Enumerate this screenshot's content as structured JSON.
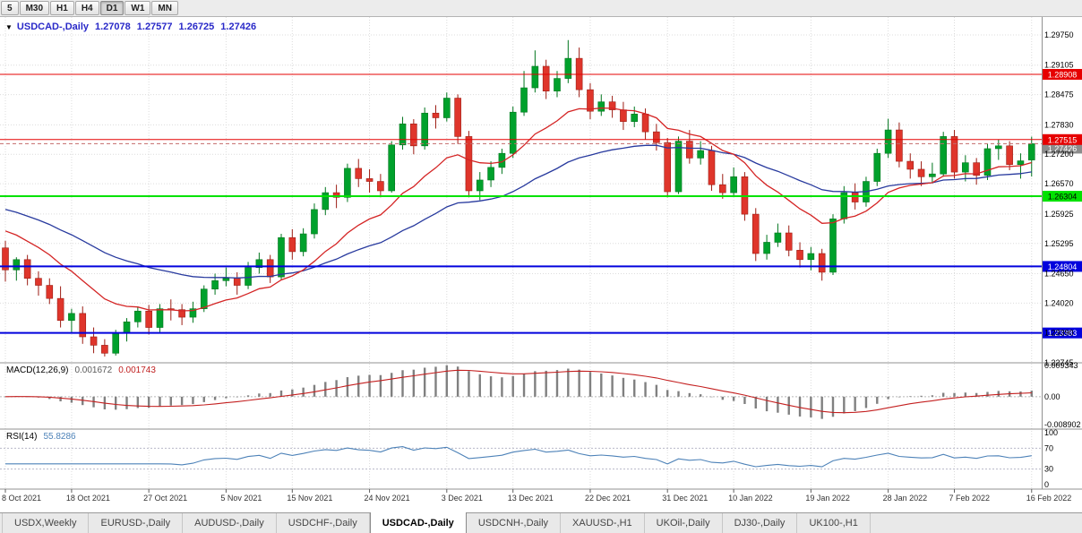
{
  "toolbar": {
    "timeframes": [
      {
        "label": "5",
        "active": false
      },
      {
        "label": "M30",
        "active": false
      },
      {
        "label": "H1",
        "active": false
      },
      {
        "label": "H4",
        "active": false
      },
      {
        "label": "D1",
        "active": true
      },
      {
        "label": "W1",
        "active": false
      },
      {
        "label": "MN",
        "active": false
      }
    ]
  },
  "chart": {
    "collapse_icon": "▼",
    "title": {
      "symbol": "USDCAD-,Daily",
      "open": "1.27078",
      "high": "1.27577",
      "low": "1.26725",
      "close": "1.27426"
    },
    "price_axis": {
      "ticks": [
        "1.29750",
        "1.29105",
        "1.28475",
        "1.27830",
        "1.27200",
        "1.26570",
        "1.25925",
        "1.25295",
        "1.24650",
        "1.24020",
        "1.23390",
        "1.22745"
      ]
    },
    "levels": [
      {
        "price": 1.28908,
        "label": "1.28908",
        "color": "#e60000",
        "text": "#ffffff",
        "width": 1
      },
      {
        "price": 1.27515,
        "label": "1.27515",
        "color": "#e60000",
        "text": "#ffffff",
        "width": 1
      },
      {
        "price": 1.26304,
        "label": "1.26304",
        "color": "#00e200",
        "text": "#000000",
        "width": 2
      },
      {
        "price": 1.24804,
        "label": "1.24804",
        "color": "#0202dd",
        "text": "#ffffff",
        "width": 2
      },
      {
        "price": 1.23383,
        "label": "1.23383",
        "color": "#0202dd",
        "text": "#ffffff",
        "width": 2
      }
    ],
    "current_price": {
      "value": 1.27426,
      "label": "1.27426",
      "badge_color": "#8c8c8c"
    }
  },
  "macd": {
    "label": "MACD(12,26,9)",
    "value_main": "0.001672",
    "value_signal": "0.001743",
    "axis_max": "0.009343",
    "axis_zero": "0.00",
    "axis_min": "-0.008902",
    "hist_color": "#808080",
    "signal_color": "#c42020"
  },
  "rsi": {
    "label": "RSI(14)",
    "value": "55.8286",
    "axis": [
      "100",
      "70",
      "30",
      "0"
    ],
    "levels": [
      70,
      30
    ],
    "line_color": "#4d82b8"
  },
  "tabs": [
    {
      "label": "USDX,Weekly",
      "active": false
    },
    {
      "label": "EURUSD-,Daily",
      "active": false
    },
    {
      "label": "AUDUSD-,Daily",
      "active": false
    },
    {
      "label": "USDCHF-,Daily",
      "active": false
    },
    {
      "label": "USDCAD-,Daily",
      "active": true
    },
    {
      "label": "USDCNH-,Daily",
      "active": false
    },
    {
      "label": "XAUUSD-,H1",
      "active": false
    },
    {
      "label": "UKOil-,Daily",
      "active": false
    },
    {
      "label": "DJ30-,Daily",
      "active": false
    },
    {
      "label": "UK100-,H1",
      "active": false
    }
  ],
  "colors": {
    "up": "#00a12c",
    "up_dark": "#00751d",
    "down": "#df352b",
    "down_dark": "#9c1d14",
    "grid": "#dcdcdc",
    "separator": "#909090",
    "title": "#2929c8"
  },
  "chart_data": {
    "type": "candlestick",
    "symbol": "USDCAD-",
    "timeframe": "Daily",
    "price_range": {
      "top": 1.2975,
      "bottom": 1.22745
    },
    "x_labels": [
      {
        "index": 0,
        "label": "8 Oct 2021"
      },
      {
        "index": 6,
        "label": "18 Oct 2021"
      },
      {
        "index": 13,
        "label": "27 Oct 2021"
      },
      {
        "index": 20,
        "label": "5 Nov 2021"
      },
      {
        "index": 26,
        "label": "15 Nov 2021"
      },
      {
        "index": 33,
        "label": "24 Nov 2021"
      },
      {
        "index": 40,
        "label": "3 Dec 2021"
      },
      {
        "index": 46,
        "label": "13 Dec 2021"
      },
      {
        "index": 53,
        "label": "22 Dec 2021"
      },
      {
        "index": 60,
        "label": "31 Dec 2021"
      },
      {
        "index": 66,
        "label": "10 Jan 2022"
      },
      {
        "index": 73,
        "label": "19 Jan 2022"
      },
      {
        "index": 80,
        "label": "28 Jan 2022"
      },
      {
        "index": 86,
        "label": "7 Feb 2022"
      },
      {
        "index": 93,
        "label": "16 Feb 2022"
      }
    ],
    "ohlc": [
      [
        1.252,
        1.2535,
        1.2448,
        1.2473
      ],
      [
        1.2473,
        1.25,
        1.245,
        1.2495
      ],
      [
        1.2495,
        1.2505,
        1.244,
        1.2455
      ],
      [
        1.2455,
        1.247,
        1.2418,
        1.244
      ],
      [
        1.244,
        1.2455,
        1.24,
        1.2412
      ],
      [
        1.2412,
        1.2438,
        1.235,
        1.2365
      ],
      [
        1.2365,
        1.239,
        1.234,
        1.238
      ],
      [
        1.238,
        1.2395,
        1.2315,
        1.233
      ],
      [
        1.233,
        1.235,
        1.2295,
        1.2312
      ],
      [
        1.2312,
        1.2325,
        1.2288,
        1.2295
      ],
      [
        1.2295,
        1.2345,
        1.229,
        1.2338
      ],
      [
        1.2338,
        1.237,
        1.232,
        1.2362
      ],
      [
        1.2362,
        1.2395,
        1.235,
        1.2385
      ],
      [
        1.2385,
        1.2398,
        1.2335,
        1.235
      ],
      [
        1.235,
        1.24,
        1.234,
        1.239
      ],
      [
        1.239,
        1.241,
        1.2365,
        1.2388
      ],
      [
        1.2388,
        1.24,
        1.2355,
        1.2372
      ],
      [
        1.2372,
        1.2405,
        1.236,
        1.239
      ],
      [
        1.239,
        1.244,
        1.2383,
        1.2432
      ],
      [
        1.2432,
        1.2465,
        1.242,
        1.245
      ],
      [
        1.245,
        1.2478,
        1.2438,
        1.2455
      ],
      [
        1.2455,
        1.2468,
        1.242,
        1.244
      ],
      [
        1.244,
        1.249,
        1.2432,
        1.2478
      ],
      [
        1.2478,
        1.251,
        1.2465,
        1.2495
      ],
      [
        1.2495,
        1.2505,
        1.2445,
        1.2458
      ],
      [
        1.2458,
        1.255,
        1.2452,
        1.2542
      ],
      [
        1.2542,
        1.256,
        1.2495,
        1.2512
      ],
      [
        1.2512,
        1.2562,
        1.2502,
        1.255
      ],
      [
        1.255,
        1.2615,
        1.254,
        1.2602
      ],
      [
        1.2602,
        1.265,
        1.259,
        1.2638
      ],
      [
        1.2638,
        1.2655,
        1.2605,
        1.2628
      ],
      [
        1.2628,
        1.27,
        1.2618,
        1.269
      ],
      [
        1.269,
        1.271,
        1.265,
        1.2668
      ],
      [
        1.2668,
        1.2688,
        1.2638,
        1.2662
      ],
      [
        1.2662,
        1.2678,
        1.2628,
        1.2642
      ],
      [
        1.2642,
        1.2748,
        1.2638,
        1.274
      ],
      [
        1.274,
        1.28,
        1.273,
        1.2785
      ],
      [
        1.2785,
        1.2795,
        1.272,
        1.2738
      ],
      [
        1.2738,
        1.282,
        1.273,
        1.2808
      ],
      [
        1.2808,
        1.2825,
        1.2775,
        1.2798
      ],
      [
        1.2798,
        1.2852,
        1.279,
        1.284
      ],
      [
        1.284,
        1.2848,
        1.2742,
        1.2758
      ],
      [
        1.2758,
        1.277,
        1.2628,
        1.2642
      ],
      [
        1.2642,
        1.2682,
        1.2622,
        1.2665
      ],
      [
        1.2665,
        1.2705,
        1.265,
        1.2692
      ],
      [
        1.2692,
        1.2732,
        1.2678,
        1.2722
      ],
      [
        1.2722,
        1.2822,
        1.2712,
        1.281
      ],
      [
        1.281,
        1.2898,
        1.2802,
        1.2862
      ],
      [
        1.2862,
        1.2942,
        1.2852,
        1.2908
      ],
      [
        1.2908,
        1.2922,
        1.2838,
        1.2855
      ],
      [
        1.2855,
        1.2898,
        1.2842,
        1.2882
      ],
      [
        1.2882,
        1.2964,
        1.2872,
        1.2925
      ],
      [
        1.2925,
        1.2948,
        1.2842,
        1.2858
      ],
      [
        1.2858,
        1.2872,
        1.2795,
        1.2812
      ],
      [
        1.2812,
        1.2848,
        1.2802,
        1.2832
      ],
      [
        1.2832,
        1.2845,
        1.2798,
        1.2815
      ],
      [
        1.2815,
        1.2832,
        1.2772,
        1.279
      ],
      [
        1.279,
        1.2822,
        1.2778,
        1.2806
      ],
      [
        1.2806,
        1.2818,
        1.2752,
        1.2768
      ],
      [
        1.2768,
        1.2785,
        1.2728,
        1.2745
      ],
      [
        1.2745,
        1.2755,
        1.2628,
        1.264
      ],
      [
        1.264,
        1.2758,
        1.2635,
        1.2748
      ],
      [
        1.2748,
        1.2772,
        1.27,
        1.2712
      ],
      [
        1.2712,
        1.2748,
        1.2698,
        1.2728
      ],
      [
        1.2728,
        1.2738,
        1.2642,
        1.2655
      ],
      [
        1.2655,
        1.2678,
        1.2625,
        1.2638
      ],
      [
        1.2638,
        1.2692,
        1.263,
        1.2672
      ],
      [
        1.2672,
        1.2682,
        1.2578,
        1.2592
      ],
      [
        1.2592,
        1.2605,
        1.2492,
        1.2508
      ],
      [
        1.2508,
        1.2548,
        1.2495,
        1.2532
      ],
      [
        1.2532,
        1.2572,
        1.2522,
        1.2552
      ],
      [
        1.2552,
        1.2568,
        1.2502,
        1.2515
      ],
      [
        1.2515,
        1.2532,
        1.2478,
        1.2495
      ],
      [
        1.2495,
        1.2522,
        1.2472,
        1.2508
      ],
      [
        1.2508,
        1.2518,
        1.245,
        1.2468
      ],
      [
        1.2468,
        1.2592,
        1.2462,
        1.2582
      ],
      [
        1.2582,
        1.2652,
        1.2572,
        1.2638
      ],
      [
        1.2638,
        1.2658,
        1.2602,
        1.2618
      ],
      [
        1.2618,
        1.2672,
        1.2608,
        1.2662
      ],
      [
        1.2662,
        1.2732,
        1.2652,
        1.2722
      ],
      [
        1.2722,
        1.2796,
        1.2712,
        1.2772
      ],
      [
        1.2772,
        1.2788,
        1.2692,
        1.2705
      ],
      [
        1.2705,
        1.2722,
        1.2668,
        1.2688
      ],
      [
        1.2688,
        1.2705,
        1.2652,
        1.2672
      ],
      [
        1.2672,
        1.2702,
        1.2658,
        1.2678
      ],
      [
        1.2678,
        1.2768,
        1.2672,
        1.2758
      ],
      [
        1.2758,
        1.2772,
        1.2668,
        1.2682
      ],
      [
        1.2682,
        1.2718,
        1.2662,
        1.2702
      ],
      [
        1.2702,
        1.2712,
        1.2655,
        1.2675
      ],
      [
        1.2675,
        1.2742,
        1.2665,
        1.2732
      ],
      [
        1.2732,
        1.2752,
        1.2708,
        1.2738
      ],
      [
        1.2738,
        1.2748,
        1.2686,
        1.2698
      ],
      [
        1.2698,
        1.2722,
        1.2668,
        1.2706
      ],
      [
        1.27078,
        1.27577,
        1.26725,
        1.27426
      ]
    ],
    "ma_fast": {
      "period": 13,
      "color": "#d42424",
      "start": 1.257
    },
    "ma_slow": {
      "period": 34,
      "color": "#283a9e",
      "start": 1.261
    },
    "indicators": {
      "macd": {
        "fast": 12,
        "slow": 26,
        "signal": 9
      },
      "rsi": {
        "period": 14
      }
    }
  }
}
